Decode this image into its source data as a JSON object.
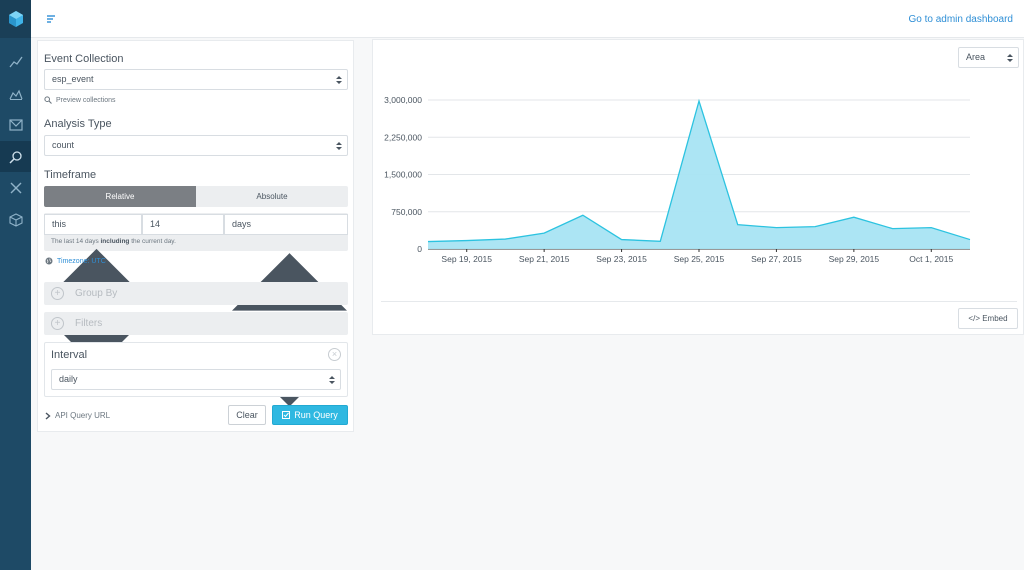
{
  "topbar": {
    "admin_link": "Go to admin dashboard"
  },
  "query": {
    "event_collection_label": "Event Collection",
    "event_collection_value": "esp_event",
    "preview_link": "Preview collections",
    "analysis_type_label": "Analysis Type",
    "analysis_type_value": "count",
    "timeframe_label": "Timeframe",
    "timeframe_tabs": [
      "Relative",
      "Absolute"
    ],
    "timeframe_rel": "this",
    "timeframe_amount": "14",
    "timeframe_unit": "days",
    "help_pre": "The last 14 days ",
    "help_bold": "including",
    "help_post": " the current day.",
    "timezone": "Timezone: UTC",
    "group_by": "Group By",
    "filters": "Filters",
    "interval_label": "Interval",
    "interval_value": "daily",
    "api_query_url": "API Query URL",
    "clear_label": "Clear",
    "run_label": "Run Query"
  },
  "chart_panel": {
    "chart_type": "Area",
    "embed_label": "</> Embed"
  },
  "colors": {
    "rail": "#1e4a66",
    "accent": "#2fb8e1",
    "area_fill": "#a8e4f3",
    "area_line": "#2cc3e0"
  },
  "icons": [
    "logo-cube-icon",
    "line-chart-icon",
    "area-chart-icon",
    "mail-icon",
    "explorer-icon",
    "tools-icon",
    "cube-icon",
    "menu-icon"
  ],
  "chart_data": {
    "type": "area",
    "x": [
      "Sep 18, 2015",
      "Sep 19, 2015",
      "Sep 20, 2015",
      "Sep 21, 2015",
      "Sep 22, 2015",
      "Sep 23, 2015",
      "Sep 24, 2015",
      "Sep 25, 2015",
      "Sep 26, 2015",
      "Sep 27, 2015",
      "Sep 28, 2015",
      "Sep 29, 2015",
      "Sep 30, 2015",
      "Oct 1, 2015",
      "Oct 2, 2015"
    ],
    "values": [
      150000,
      170000,
      200000,
      320000,
      680000,
      190000,
      155000,
      2980000,
      490000,
      430000,
      450000,
      640000,
      410000,
      430000,
      190000
    ],
    "x_tick_labels": [
      "Sep 19, 2015",
      "Sep 21, 2015",
      "Sep 23, 2015",
      "Sep 25, 2015",
      "Sep 27, 2015",
      "Sep 29, 2015",
      "Oct 1, 2015"
    ],
    "y_ticks": [
      "0",
      "750,000",
      "1,500,000",
      "2,250,000",
      "3,000,000"
    ],
    "ylim": [
      0,
      3000000
    ],
    "grid": true
  }
}
